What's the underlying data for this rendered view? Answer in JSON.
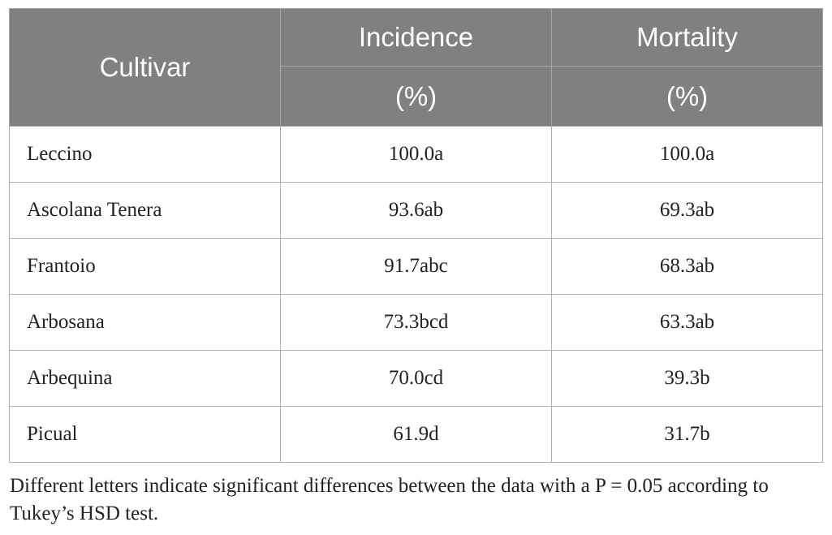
{
  "table": {
    "header": {
      "cultivar": "Cultivar",
      "incidence": "Incidence",
      "incidence_unit": "(%)",
      "mortality": "Mortality",
      "mortality_unit": "(%)"
    },
    "rows": [
      {
        "cultivar": "Leccino",
        "incidence": "100.0a",
        "mortality": "100.0a"
      },
      {
        "cultivar": "Ascolana Tenera",
        "incidence": "93.6ab",
        "mortality": "69.3ab"
      },
      {
        "cultivar": "Frantoio",
        "incidence": "91.7abc",
        "mortality": "68.3ab"
      },
      {
        "cultivar": "Arbosana",
        "incidence": "73.3bcd",
        "mortality": "63.3ab"
      },
      {
        "cultivar": "Arbequina",
        "incidence": "70.0cd",
        "mortality": "39.3b"
      },
      {
        "cultivar": "Picual",
        "incidence": "61.9d",
        "mortality": "31.7b"
      }
    ],
    "header_color": "#808080"
  },
  "footnote": "Different letters indicate significant differences between the data with a P = 0.05 according to Tukey’s HSD test."
}
